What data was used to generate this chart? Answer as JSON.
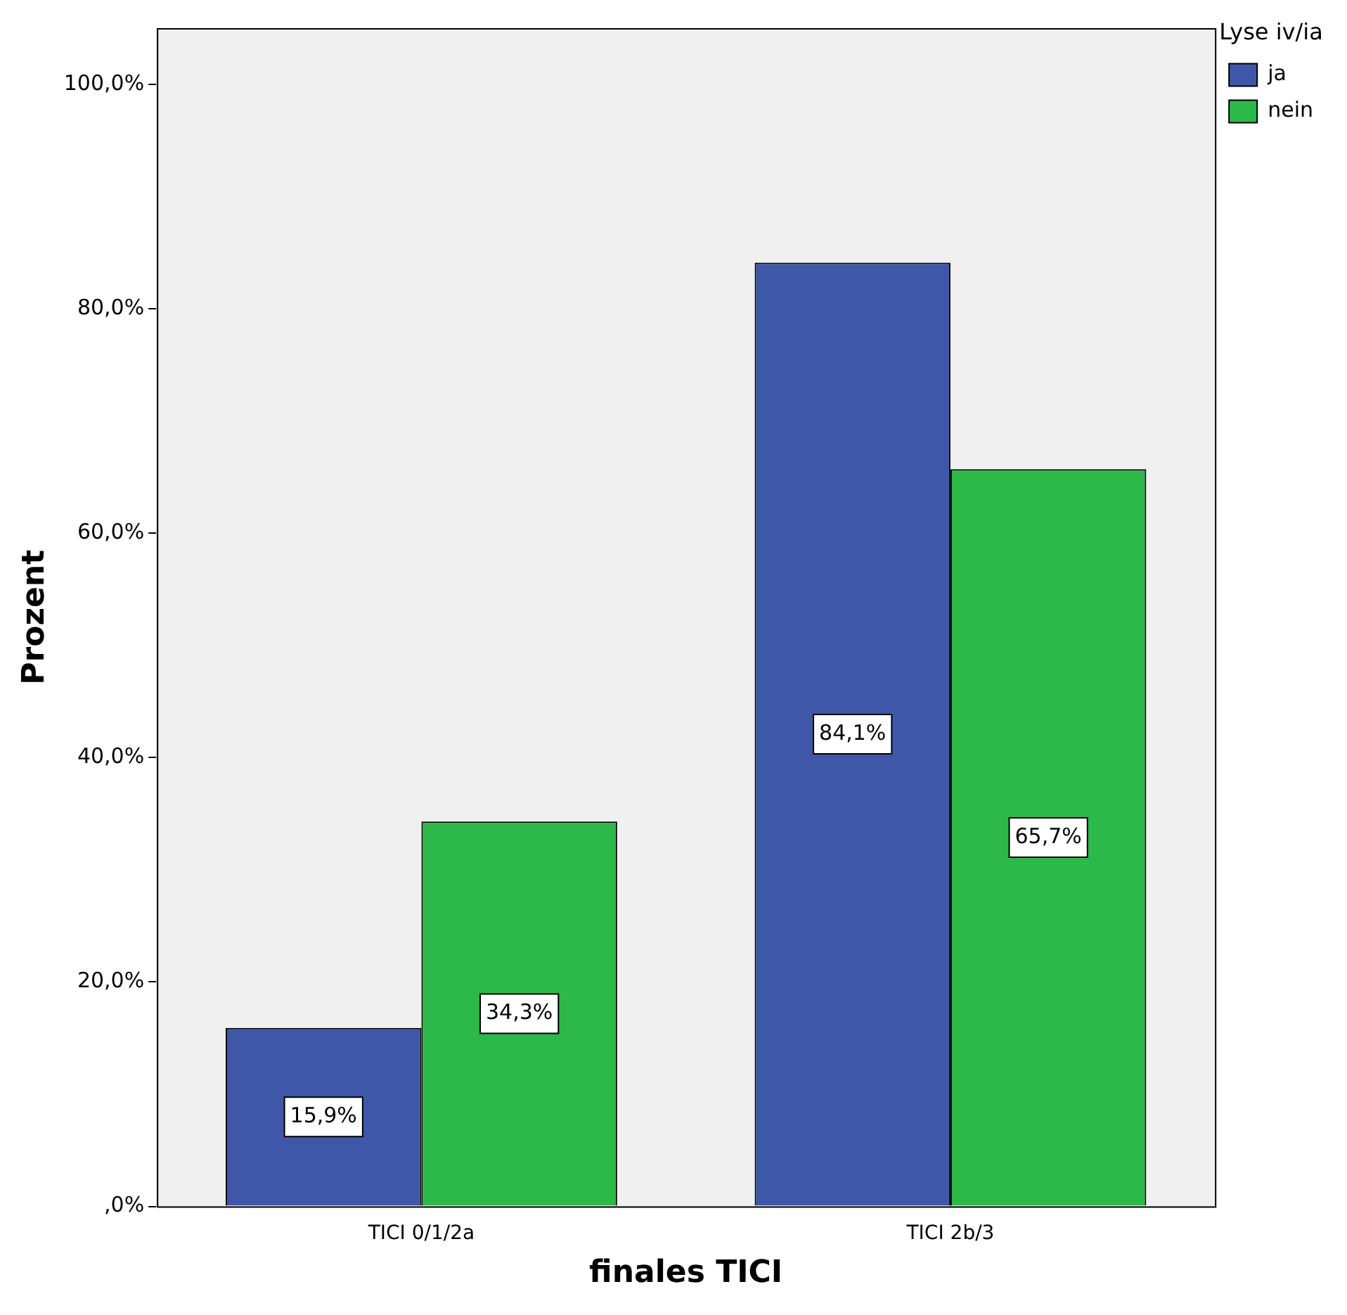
{
  "chart_data": {
    "type": "bar",
    "xlabel": "finales TICI",
    "ylabel": "Prozent",
    "legend_title": "Lyse iv/ia",
    "categories": [
      "TICI 0/1/2a",
      "TICI 2b/3"
    ],
    "series": [
      {
        "name": "ja",
        "color": "#3f57a8",
        "values": [
          15.9,
          84.1
        ],
        "value_labels": [
          "15,9%",
          "84,1%"
        ]
      },
      {
        "name": "nein",
        "color": "#2db84a",
        "values": [
          34.3,
          65.7
        ],
        "value_labels": [
          "34,3%",
          "65,7%"
        ]
      }
    ],
    "ylim": [
      0,
      105
    ],
    "yticks": [
      {
        "value": 0,
        "label": ",0%"
      },
      {
        "value": 20,
        "label": "20,0%"
      },
      {
        "value": 40,
        "label": "40,0%"
      },
      {
        "value": 60,
        "label": "60,0%"
      },
      {
        "value": 80,
        "label": "80,0%"
      },
      {
        "value": 100,
        "label": "100,0%"
      }
    ],
    "grid": false,
    "legend": "top right"
  }
}
